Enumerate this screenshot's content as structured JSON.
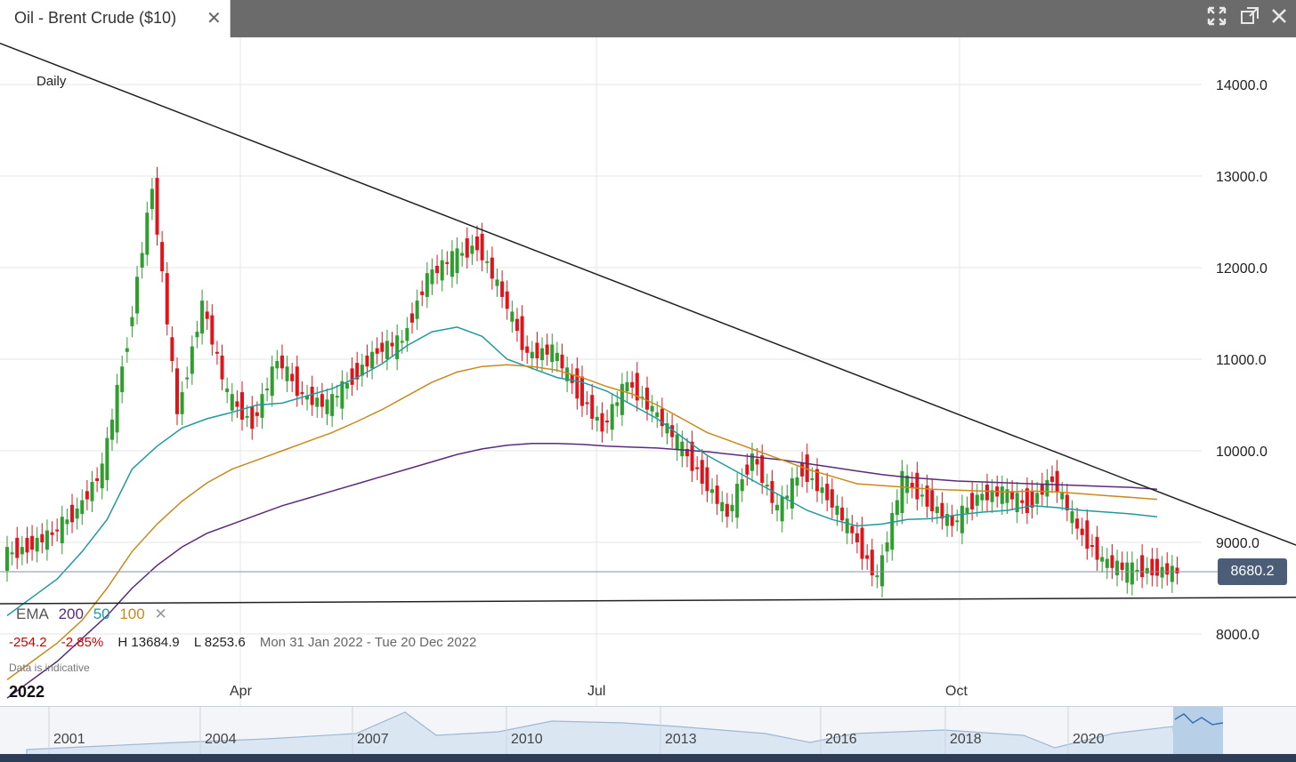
{
  "window": {
    "tab_title": "Oil - Brent Crude ($10)",
    "close_glyph": "✕",
    "controls": [
      "expand-icon",
      "popout-icon",
      "close-icon"
    ]
  },
  "chart_labels": {
    "interval": "Daily",
    "ema_label": "EMA",
    "ema_periods": [
      "200",
      "50",
      "100"
    ],
    "ema_remove": "✕",
    "change_abs": "-254.2",
    "change_pct": "-2.85%",
    "high": "H 13684.9",
    "low": "L 8253.6",
    "range": "Mon 31 Jan 2022 - Tue 20 Dec 2022",
    "indicative": "Data is indicative",
    "current_price": "8680.2",
    "year": "2022",
    "months": [
      "Apr",
      "Jul",
      "Oct"
    ],
    "nav_years": [
      "2001",
      "2004",
      "2007",
      "2010",
      "2013",
      "2016",
      "2018",
      "2020"
    ]
  },
  "colors": {
    "up": "#2e9e2e",
    "down": "#e0151b",
    "ema200": "#5a2b7a",
    "ema50": "#1f9aa0",
    "ema100": "#c98a1a",
    "price_tag": "#4c5d78",
    "change": "#cc0000"
  },
  "chart_data": {
    "type": "line",
    "title": "Oil - Brent Crude ($10)",
    "xlabel": "",
    "ylabel": "",
    "ylim": [
      7700,
      14450
    ],
    "y_ticks": [
      "8000.0",
      "9000.0",
      "10000.0",
      "11000.0",
      "12000.0",
      "13000.0",
      "14000.0"
    ],
    "x_ticks": [
      "Apr",
      "Jul",
      "Oct"
    ],
    "x_range": [
      "2022-01-31",
      "2022-12-20"
    ],
    "grid": true,
    "last_price": 8680.2,
    "series": [
      {
        "name": "",
        "x": [
          "2022-01-31",
          "2022-02-07",
          "2022-02-14",
          "2022-02-21",
          "2022-02-28",
          "2022-03-07",
          "2022-03-14",
          "2022-03-21",
          "2022-03-28",
          "2022-04-04",
          "2022-04-11",
          "2022-04-18",
          "2022-04-25",
          "2022-05-02",
          "2022-05-09",
          "2022-05-16",
          "2022-05-23",
          "2022-05-30",
          "2022-06-06",
          "2022-06-13",
          "2022-06-20",
          "2022-06-27",
          "2022-07-04",
          "2022-07-11",
          "2022-07-18",
          "2022-07-25",
          "2022-08-01",
          "2022-08-08",
          "2022-08-15",
          "2022-08-22",
          "2022-08-29",
          "2022-09-05",
          "2022-09-12",
          "2022-09-19",
          "2022-09-26",
          "2022-10-03",
          "2022-10-10",
          "2022-10-17",
          "2022-10-24",
          "2022-10-31",
          "2022-11-07",
          "2022-11-14",
          "2022-11-21",
          "2022-11-28",
          "2022-12-05",
          "2022-12-12",
          "2022-12-19"
        ],
        "values": [
          8950,
          9100,
          9350,
          9800,
          11200,
          12900,
          10400,
          11600,
          10600,
          10300,
          11000,
          10600,
          10500,
          10800,
          11100,
          11200,
          11900,
          12100,
          12250,
          11700,
          11050,
          11100,
          10650,
          10250,
          10750,
          10450,
          10100,
          9700,
          9300,
          9950,
          9350,
          9800,
          9500,
          9100,
          8600,
          9700,
          9450,
          9200,
          9500,
          9550,
          9400,
          9700,
          9150,
          8800,
          8700,
          8700,
          8680
        ]
      },
      {
        "name": "200",
        "values": [
          7300,
          7500,
          7700,
          7950,
          8200,
          8500,
          8750,
          8950,
          9100,
          9200,
          9300,
          9400,
          9480,
          9560,
          9640,
          9720,
          9800,
          9880,
          9960,
          10020,
          10060,
          10080,
          10080,
          10070,
          10050,
          10040,
          10030,
          10010,
          9990,
          9960,
          9930,
          9900,
          9860,
          9820,
          9780,
          9740,
          9710,
          9690,
          9670,
          9660,
          9650,
          9640,
          9630,
          9620,
          9610,
          9600,
          9580
        ]
      },
      {
        "name": "50",
        "values": [
          8200,
          8400,
          8600,
          8900,
          9250,
          9800,
          10050,
          10250,
          10350,
          10420,
          10500,
          10520,
          10600,
          10680,
          10800,
          10950,
          11150,
          11300,
          11350,
          11250,
          11000,
          10900,
          10800,
          10750,
          10650,
          10500,
          10350,
          10150,
          9950,
          9800,
          9650,
          9500,
          9350,
          9250,
          9180,
          9200,
          9250,
          9260,
          9300,
          9330,
          9350,
          9400,
          9380,
          9350,
          9330,
          9310,
          9280
        ]
      },
      {
        "name": "100",
        "values": [
          7500,
          7700,
          7900,
          8150,
          8500,
          8900,
          9200,
          9450,
          9650,
          9800,
          9900,
          10000,
          10100,
          10200,
          10320,
          10450,
          10600,
          10750,
          10860,
          10920,
          10940,
          10920,
          10880,
          10800,
          10700,
          10620,
          10500,
          10350,
          10200,
          10100,
          10000,
          9900,
          9800,
          9720,
          9640,
          9620,
          9600,
          9580,
          9570,
          9560,
          9550,
          9560,
          9550,
          9530,
          9510,
          9490,
          9470
        ]
      }
    ]
  }
}
